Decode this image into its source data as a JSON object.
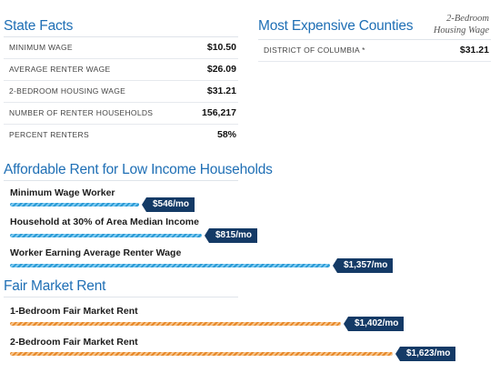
{
  "state_facts": {
    "title": "State Facts",
    "rows": [
      {
        "label": "MINIMUM WAGE",
        "value": "$10.50"
      },
      {
        "label": "AVERAGE RENTER WAGE",
        "value": "$26.09"
      },
      {
        "label": "2-BEDROOM HOUSING WAGE",
        "value": "$31.21"
      },
      {
        "label": "NUMBER OF RENTER HOUSEHOLDS",
        "value": "156,217"
      },
      {
        "label": "PERCENT RENTERS",
        "value": "58%"
      }
    ]
  },
  "expensive_counties": {
    "title": "Most Expensive Counties",
    "column_header_line1": "2-Bedroom",
    "column_header_line2": "Housing Wage",
    "rows": [
      {
        "county": "DISTRICT OF COLUMBIA *",
        "value": "$31.21"
      }
    ]
  },
  "affordable_rent": {
    "title": "Affordable Rent for Low Income Households",
    "bars": [
      {
        "label": "Minimum Wage Worker",
        "amount": 546,
        "tag": "$546/mo"
      },
      {
        "label": "Household at 30% of Area Median Income",
        "amount": 815,
        "tag": "$815/mo"
      },
      {
        "label": "Worker Earning Average Renter Wage",
        "amount": 1357,
        "tag": "$1,357/mo"
      }
    ]
  },
  "fair_market_rent": {
    "title": "Fair Market Rent",
    "bars": [
      {
        "label": "1-Bedroom Fair Market Rent",
        "amount": 1402,
        "tag": "$1,402/mo"
      },
      {
        "label": "2-Bedroom Fair Market Rent",
        "amount": 1623,
        "tag": "$1,623/mo"
      }
    ]
  },
  "colors": {
    "title_blue": "#1f6fb5",
    "tag_navy": "#143a66",
    "affordable_bar": "#2b9bd6",
    "market_bar": "#e8892a"
  }
}
